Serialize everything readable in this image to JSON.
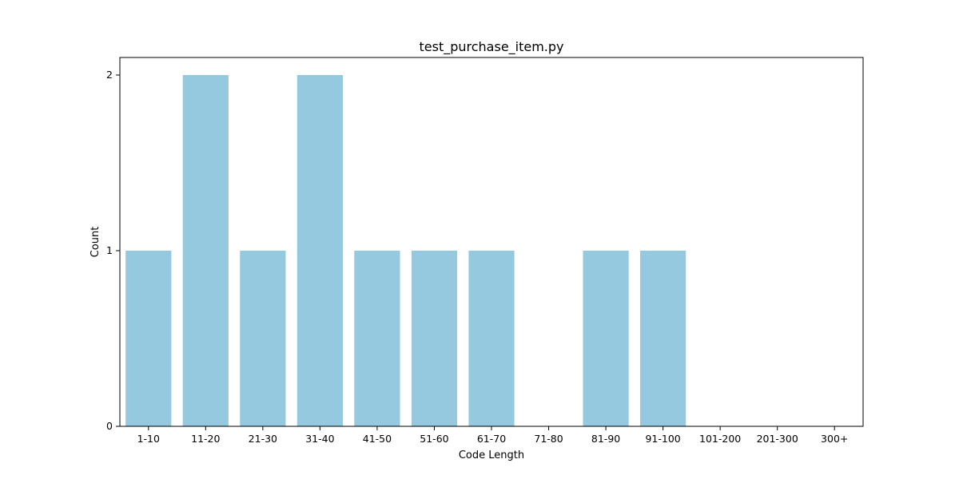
{
  "chart_data": {
    "type": "bar",
    "title": "test_purchase_item.py",
    "xlabel": "Code Length",
    "ylabel": "Count",
    "categories": [
      "1-10",
      "11-20",
      "21-30",
      "31-40",
      "41-50",
      "51-60",
      "61-70",
      "71-80",
      "81-90",
      "91-100",
      "101-200",
      "201-300",
      "300+"
    ],
    "values": [
      1,
      2,
      1,
      2,
      1,
      1,
      1,
      0,
      1,
      1,
      0,
      0,
      0
    ],
    "ylim": [
      0,
      2.1
    ],
    "yticks": [
      0,
      1,
      2
    ],
    "yticks_labels": [
      "0",
      "1",
      "2"
    ],
    "grid": false,
    "legend": false,
    "bar_color": "#95c9df",
    "axis_color": "#000000"
  }
}
